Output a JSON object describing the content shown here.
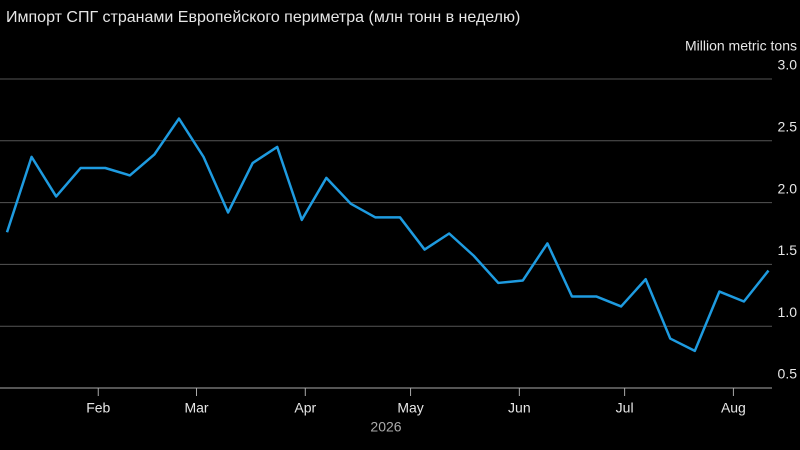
{
  "chart_data": {
    "type": "line",
    "title": "Импорт СПГ странами Европейского периметра (млн тонн в неделю)",
    "y_unit_label": "Million metric tons",
    "x_year_label": "2026",
    "x": [
      6,
      13,
      20,
      27,
      34,
      41,
      48,
      55,
      62,
      69,
      76,
      83,
      90,
      97,
      104,
      111,
      118,
      125,
      132,
      139,
      146,
      153,
      160,
      167,
      174,
      181,
      188,
      195,
      202,
      209,
      216,
      223
    ],
    "series": [
      {
        "color": "#1e9be0",
        "values": [
          1.76,
          2.37,
          2.05,
          2.28,
          2.28,
          2.22,
          2.39,
          2.68,
          2.37,
          1.92,
          2.32,
          2.45,
          1.86,
          2.2,
          1.99,
          1.88,
          1.88,
          1.62,
          1.75,
          1.57,
          1.35,
          1.37,
          1.67,
          1.24,
          1.24,
          1.16,
          1.38,
          0.9,
          0.8,
          1.28,
          1.2,
          1.45
        ]
      }
    ],
    "xlim": [
      4,
      224
    ],
    "xticks": [
      {
        "value": 32,
        "label": "Feb"
      },
      {
        "value": 60,
        "label": "Mar"
      },
      {
        "value": 91,
        "label": "Apr"
      },
      {
        "value": 121,
        "label": "May"
      },
      {
        "value": 152,
        "label": "Jun"
      },
      {
        "value": 182,
        "label": "Jul"
      },
      {
        "value": 213,
        "label": "Aug"
      }
    ],
    "ylim": [
      0.5,
      3.0
    ],
    "yticks": [
      0.5,
      {
        "value": 1.0,
        "label": "1.0"
      },
      1.5,
      {
        "value": 2.0,
        "label": "2.0"
      },
      2.5,
      {
        "value": 3.0,
        "label": "3.0"
      }
    ],
    "grid": true
  }
}
